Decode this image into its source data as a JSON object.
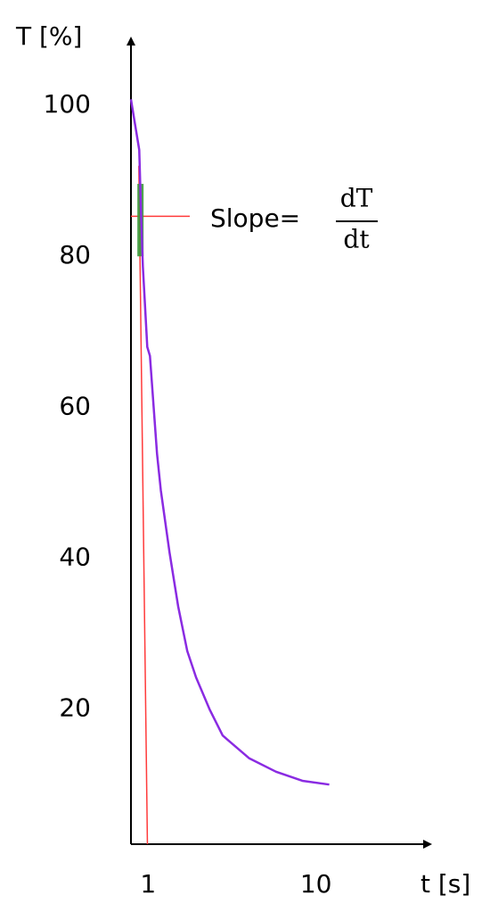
{
  "chart_data": {
    "type": "line",
    "log_x": true,
    "y_label": "T [%]",
    "x_label": "t [s]",
    "xlim": [
      0.79,
      48
    ],
    "xticks": [
      1,
      10
    ],
    "ylim": [
      2.1,
      109
    ],
    "yticks": [
      20,
      40,
      60,
      80,
      100
    ],
    "series": [
      {
        "color": "#8a2be2",
        "x": [
          0.79,
          0.885,
          0.907,
          0.93,
          0.988,
          1.025,
          1.13,
          1.19,
          1.34,
          1.51,
          1.71,
          1.93,
          2.32,
          2.78,
          3.99,
          5.78,
          8.3,
          12.0
        ],
        "values": [
          100.8,
          94.1,
          85.8,
          78.7,
          68,
          66.8,
          53.8,
          49,
          40.8,
          33.6,
          27.7,
          24.2,
          20,
          16.5,
          13.5,
          11.7,
          10.5,
          10
        ]
      }
    ],
    "tangent": {
      "color": "#ff3b3b",
      "x": [
        0.88,
        0.99
      ],
      "y": [
        92,
        2.1
      ]
    },
    "reference": {
      "color": "#ff3b3b",
      "x": [
        0.79,
        1.77
      ],
      "y": 85.3
    },
    "highlight": {
      "color": "#3a9a3a",
      "x": 0.9,
      "y": [
        80,
        89.6
      ]
    },
    "annotation": {
      "text": "Slope=",
      "numerator": "dT",
      "denominator": "dt"
    }
  }
}
